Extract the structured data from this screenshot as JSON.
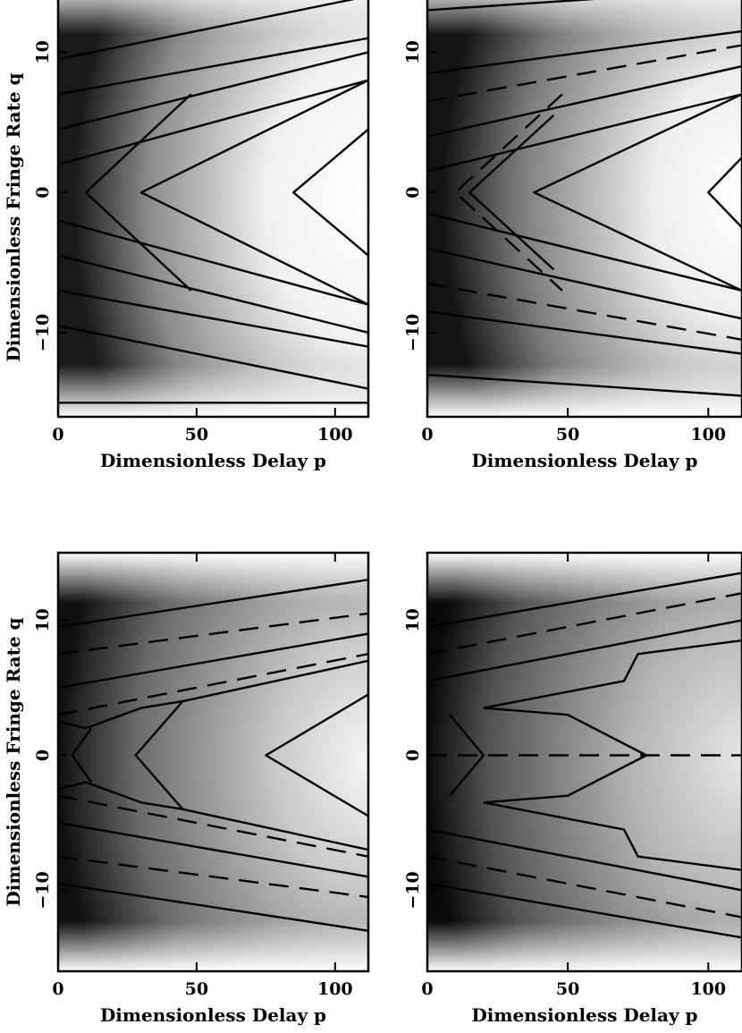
{
  "chart_data": [
    {
      "type": "heatmap",
      "panel": "top-left",
      "xlabel": "Dimensionless Delay p",
      "ylabel": "Dimensionless Fringe Rate q",
      "xticks": [
        "0",
        "50",
        "100"
      ],
      "yticks": [
        "10",
        "0",
        "−10"
      ],
      "xlim": [
        0,
        112
      ],
      "ylim": [
        -16,
        15
      ],
      "grid": false,
      "colormap": "grayscale, dark = low, white = high",
      "contours": [
        {
          "style": "solid",
          "points": [
            [
              0,
              9.5
            ],
            [
              112,
              14
            ]
          ]
        },
        {
          "style": "solid",
          "points": [
            [
              0,
              -9.5
            ],
            [
              112,
              -14
            ]
          ]
        },
        {
          "style": "solid",
          "points": [
            [
              0,
              7
            ],
            [
              112,
              11
            ]
          ]
        },
        {
          "style": "solid",
          "points": [
            [
              0,
              -7
            ],
            [
              112,
              -11
            ]
          ]
        },
        {
          "style": "solid",
          "points": [
            [
              0,
              4.5
            ],
            [
              112,
              10
            ]
          ]
        },
        {
          "style": "solid",
          "points": [
            [
              0,
              -4.5
            ],
            [
              112,
              -10
            ]
          ]
        },
        {
          "style": "solid",
          "points": [
            [
              0,
              2
            ],
            [
              112,
              8
            ]
          ]
        },
        {
          "style": "solid",
          "points": [
            [
              0,
              -2
            ],
            [
              112,
              -8
            ]
          ]
        },
        {
          "style": "solid",
          "points": [
            [
              0,
              15
            ],
            [
              112,
              15
            ]
          ]
        },
        {
          "style": "solid",
          "points": [
            [
              0,
              -15
            ],
            [
              112,
              -15
            ]
          ]
        },
        {
          "style": "solid",
          "points": [
            [
              48,
              7
            ],
            [
              10,
              0
            ],
            [
              48,
              -7
            ]
          ]
        },
        {
          "style": "solid",
          "points": [
            [
              112,
              8
            ],
            [
              30,
              0
            ],
            [
              112,
              -8
            ]
          ]
        },
        {
          "style": "solid",
          "points": [
            [
              112,
              4.5
            ],
            [
              85,
              0
            ],
            [
              112,
              -4.5
            ]
          ]
        }
      ]
    },
    {
      "type": "heatmap",
      "panel": "top-right",
      "xlabel": "Dimensionless Delay p",
      "ylabel": "",
      "xticks": [
        "0",
        "50",
        "100"
      ],
      "yticks": [
        "10",
        "0",
        "−10"
      ],
      "xlim": [
        0,
        112
      ],
      "ylim": [
        -16,
        15
      ],
      "grid": false,
      "colormap": "grayscale, dark = low, white = high",
      "contours": [
        {
          "style": "solid",
          "points": [
            [
              0,
              13
            ],
            [
              112,
              14.5
            ]
          ]
        },
        {
          "style": "solid",
          "points": [
            [
              0,
              -13
            ],
            [
              112,
              -14.5
            ]
          ]
        },
        {
          "style": "solid",
          "points": [
            [
              0,
              8.5
            ],
            [
              112,
              11.5
            ]
          ]
        },
        {
          "style": "solid",
          "points": [
            [
              0,
              -8.5
            ],
            [
              112,
              -11.5
            ]
          ]
        },
        {
          "style": "dashed",
          "points": [
            [
              0,
              6.5
            ],
            [
              112,
              10.5
            ]
          ]
        },
        {
          "style": "dashed",
          "points": [
            [
              0,
              -6.5
            ],
            [
              112,
              -10.5
            ]
          ]
        },
        {
          "style": "solid",
          "points": [
            [
              0,
              4
            ],
            [
              112,
              9
            ]
          ]
        },
        {
          "style": "solid",
          "points": [
            [
              0,
              -4
            ],
            [
              112,
              -9
            ]
          ]
        },
        {
          "style": "solid",
          "points": [
            [
              0,
              1.5
            ],
            [
              112,
              7
            ]
          ]
        },
        {
          "style": "solid",
          "points": [
            [
              0,
              -1.5
            ],
            [
              112,
              -7
            ]
          ]
        },
        {
          "style": "dashed",
          "points": [
            [
              48,
              7
            ],
            [
              10,
              0
            ],
            [
              48,
              -7
            ]
          ]
        },
        {
          "style": "solid",
          "points": [
            [
              45,
              5.5
            ],
            [
              15,
              0
            ],
            [
              45,
              -5.5
            ]
          ]
        },
        {
          "style": "solid",
          "points": [
            [
              112,
              7
            ],
            [
              38,
              0
            ],
            [
              112,
              -7
            ]
          ]
        },
        {
          "style": "solid",
          "points": [
            [
              112,
              2.5
            ],
            [
              100,
              0
            ],
            [
              112,
              -2.5
            ]
          ]
        }
      ]
    },
    {
      "type": "heatmap",
      "panel": "bottom-left",
      "xlabel": "Dimensionless Delay p",
      "ylabel": "Dimensionless Fringe Rate q",
      "xticks": [
        "0",
        "50",
        "100"
      ],
      "yticks": [
        "10",
        "0",
        "−10"
      ],
      "xlim": [
        0,
        112
      ],
      "ylim": [
        -16,
        15
      ],
      "grid": false,
      "colormap": "grayscale, dark = low, white = high",
      "contours": [
        {
          "style": "solid",
          "points": [
            [
              0,
              9.5
            ],
            [
              112,
              13
            ]
          ]
        },
        {
          "style": "solid",
          "points": [
            [
              0,
              -9.5
            ],
            [
              112,
              -13
            ]
          ]
        },
        {
          "style": "dashed",
          "points": [
            [
              0,
              7.5
            ],
            [
              112,
              10.5
            ]
          ]
        },
        {
          "style": "dashed",
          "points": [
            [
              0,
              -7.5
            ],
            [
              112,
              -10.5
            ]
          ]
        },
        {
          "style": "solid",
          "points": [
            [
              0,
              5
            ],
            [
              112,
              9
            ]
          ]
        },
        {
          "style": "solid",
          "points": [
            [
              0,
              -5
            ],
            [
              112,
              -9
            ]
          ]
        },
        {
          "style": "dashed",
          "points": [
            [
              0,
              3
            ],
            [
              112,
              7.5
            ]
          ]
        },
        {
          "style": "dashed",
          "points": [
            [
              0,
              -3
            ],
            [
              112,
              -7.5
            ]
          ]
        },
        {
          "style": "solid",
          "points": [
            [
              0,
              2.5
            ],
            [
              10,
              2
            ],
            [
              30,
              3.5
            ],
            [
              45,
              4
            ],
            [
              112,
              7
            ]
          ]
        },
        {
          "style": "solid",
          "points": [
            [
              0,
              -2.5
            ],
            [
              10,
              -2
            ],
            [
              30,
              -3.5
            ],
            [
              45,
              -4
            ],
            [
              112,
              -7
            ]
          ]
        },
        {
          "style": "solid",
          "points": [
            [
              45,
              4
            ],
            [
              28,
              0
            ],
            [
              45,
              -4
            ]
          ]
        },
        {
          "style": "solid",
          "points": [
            [
              112,
              4.5
            ],
            [
              75,
              0
            ],
            [
              112,
              -4.5
            ]
          ]
        },
        {
          "style": "solid",
          "points": [
            [
              12,
              2
            ],
            [
              5,
              0
            ],
            [
              12,
              -2
            ]
          ]
        }
      ]
    },
    {
      "type": "heatmap",
      "panel": "bottom-right",
      "xlabel": "Dimensionless Delay p",
      "ylabel": "",
      "xticks": [
        "0",
        "50",
        "100"
      ],
      "yticks": [
        "10",
        "0",
        "−10"
      ],
      "xlim": [
        0,
        112
      ],
      "ylim": [
        -16,
        15
      ],
      "grid": false,
      "colormap": "grayscale, dark = low, white = high",
      "contours": [
        {
          "style": "solid",
          "points": [
            [
              0,
              9.5
            ],
            [
              112,
              13.5
            ]
          ]
        },
        {
          "style": "solid",
          "points": [
            [
              0,
              -9.5
            ],
            [
              112,
              -13.5
            ]
          ]
        },
        {
          "style": "dashed",
          "points": [
            [
              0,
              7.5
            ],
            [
              112,
              12
            ]
          ]
        },
        {
          "style": "dashed",
          "points": [
            [
              0,
              -7.5
            ],
            [
              112,
              -12
            ]
          ]
        },
        {
          "style": "solid",
          "points": [
            [
              0,
              5.5
            ],
            [
              112,
              10
            ]
          ]
        },
        {
          "style": "solid",
          "points": [
            [
              0,
              -5.5
            ],
            [
              112,
              -10
            ]
          ]
        },
        {
          "style": "solid",
          "points": [
            [
              20,
              3.5
            ],
            [
              50,
              3
            ],
            [
              78,
              0
            ],
            [
              50,
              -3
            ],
            [
              20,
              -3.5
            ]
          ]
        },
        {
          "style": "solid",
          "points": [
            [
              20,
              3.5
            ],
            [
              70,
              5.5
            ],
            [
              75,
              7.5
            ],
            [
              112,
              8.5
            ]
          ]
        },
        {
          "style": "solid",
          "points": [
            [
              20,
              -3.5
            ],
            [
              70,
              -5.5
            ],
            [
              75,
              -7.5
            ],
            [
              112,
              -8.5
            ]
          ]
        },
        {
          "style": "solid",
          "points": [
            [
              8,
              3
            ],
            [
              20,
              0
            ],
            [
              8,
              -3
            ]
          ]
        },
        {
          "style": "dashed",
          "points": [
            [
              0,
              0
            ],
            [
              112,
              0
            ]
          ]
        }
      ]
    }
  ]
}
